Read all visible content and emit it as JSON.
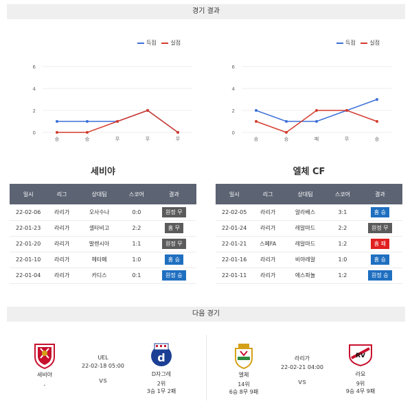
{
  "header": {
    "title": "경기 결과"
  },
  "legend": {
    "scored": "득점",
    "conceded": "실점"
  },
  "colors": {
    "scored": "#3b6fd8",
    "conceded": "#d33a2c",
    "home": "#5b5b5b",
    "away": "#1f6fc0",
    "loss": "#e02020",
    "win_blue": "#1f6fc0"
  },
  "chart_data": [
    {
      "type": "line",
      "categories": [
        "승",
        "승",
        "무",
        "무",
        "무"
      ],
      "ylim": [
        0,
        6
      ],
      "yticks": [
        0,
        2,
        4,
        6
      ],
      "series": [
        {
          "name": "득점",
          "values": [
            1,
            1,
            1,
            2,
            0
          ]
        },
        {
          "name": "실점",
          "values": [
            0,
            0,
            1,
            2,
            0
          ]
        }
      ]
    },
    {
      "type": "line",
      "categories": [
        "승",
        "승",
        "패",
        "무",
        "승"
      ],
      "ylim": [
        0,
        6
      ],
      "yticks": [
        0,
        2,
        4,
        6
      ],
      "series": [
        {
          "name": "득점",
          "values": [
            2,
            1,
            1,
            2,
            3
          ]
        },
        {
          "name": "실점",
          "values": [
            1,
            0,
            2,
            2,
            1
          ]
        }
      ]
    }
  ],
  "left_team": {
    "name": "세비야",
    "headers": [
      "일시",
      "리그",
      "상대팀",
      "스코어",
      "결과"
    ],
    "rows": [
      {
        "date": "22-02-06",
        "league": "라리가",
        "opponent": "오사수나",
        "score": "0:0",
        "result": "원정 무",
        "kind": "home"
      },
      {
        "date": "22-01-23",
        "league": "라리가",
        "opponent": "셀타비고",
        "score": "2:2",
        "result": "홈 무",
        "kind": "home"
      },
      {
        "date": "22-01-20",
        "league": "라리가",
        "opponent": "발렌시아",
        "score": "1:1",
        "result": "원정 무",
        "kind": "home"
      },
      {
        "date": "22-01-10",
        "league": "라리가",
        "opponent": "헤타페",
        "score": "1:0",
        "result": "홈 승",
        "kind": "away"
      },
      {
        "date": "22-01-04",
        "league": "라리가",
        "opponent": "카디스",
        "score": "0:1",
        "result": "원정 승",
        "kind": "away"
      }
    ]
  },
  "right_team": {
    "name": "엘체 CF",
    "headers": [
      "일시",
      "리그",
      "상대팀",
      "스코어",
      "결과"
    ],
    "rows": [
      {
        "date": "22-02-05",
        "league": "라리가",
        "opponent": "알라베스",
        "score": "3:1",
        "result": "홈 승",
        "kind": "away"
      },
      {
        "date": "22-01-24",
        "league": "라리가",
        "opponent": "레알마드",
        "score": "2:2",
        "result": "원정 무",
        "kind": "home"
      },
      {
        "date": "22-01-21",
        "league": "스페FA",
        "opponent": "레알마드",
        "score": "1:2",
        "result": "홈 패",
        "kind": "loss"
      },
      {
        "date": "22-01-16",
        "league": "라리가",
        "opponent": "비야레알",
        "score": "1:0",
        "result": "홈 승",
        "kind": "away"
      },
      {
        "date": "22-01-11",
        "league": "라리가",
        "opponent": "에스파뇰",
        "score": "1:2",
        "result": "원정 승",
        "kind": "away"
      }
    ]
  },
  "next_header": {
    "title": "다음 경기"
  },
  "next_left": {
    "home_name": "세비야",
    "home_rank": "-",
    "league": "UEL",
    "datetime": "22-02-18 05:00",
    "vs": "VS",
    "away_name": "D자그레",
    "away_rank": "2위",
    "away_record": "3승 1무 2패"
  },
  "next_right": {
    "home_name": "엘체",
    "home_rank": "14위",
    "home_record": "6승 8무 9패",
    "league": "라리가",
    "datetime": "22-02-21 04:00",
    "vs": "VS",
    "away_name": "라요",
    "away_rank": "9위",
    "away_record": "9승 4무 9패"
  }
}
